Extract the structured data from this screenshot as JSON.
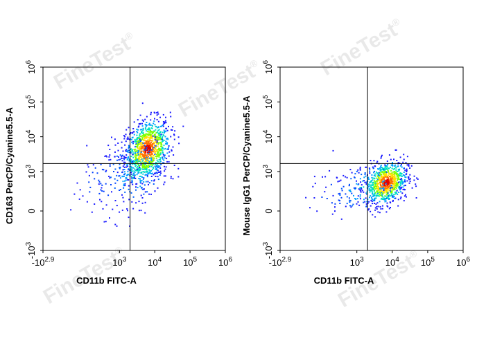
{
  "watermark": {
    "text": "FineTest",
    "mark": "®"
  },
  "chart_data": [
    {
      "type": "scatter",
      "subtype": "flow-cytometry-density-dot-plot",
      "xlabel": "CD11b FITC-A",
      "ylabel": "CD163 PerCP/Cyanine5.5-A",
      "x_scale": "biexponential",
      "y_scale": "biexponential",
      "x_ticks": [
        {
          "value": -794,
          "base": "-10",
          "exp": "2.9"
        },
        {
          "value": 1000,
          "base": "10",
          "exp": "3"
        },
        {
          "value": 10000,
          "base": "10",
          "exp": "4"
        },
        {
          "value": 100000,
          "base": "10",
          "exp": "5"
        },
        {
          "value": 1000000,
          "base": "10",
          "exp": "6"
        }
      ],
      "y_ticks": [
        {
          "value": -1000,
          "base": "-10",
          "exp": "3"
        },
        {
          "value": 0,
          "base": "0",
          "exp": ""
        },
        {
          "value": 1000,
          "base": "10",
          "exp": "3"
        },
        {
          "value": 10000,
          "base": "10",
          "exp": "4"
        },
        {
          "value": 100000,
          "base": "10",
          "exp": "5"
        },
        {
          "value": 1000000,
          "base": "10",
          "exp": "6"
        }
      ],
      "gate": {
        "x": 2000,
        "y": 1700
      },
      "populations": [
        {
          "center": [
            6000,
            4500
          ],
          "spread": [
            0.32,
            0.42
          ],
          "count": 900,
          "density": "high"
        },
        {
          "center": [
            3000,
            1200
          ],
          "spread": [
            0.45,
            0.5
          ],
          "count": 260,
          "density": "medium"
        },
        {
          "center": [
            400,
            600
          ],
          "spread": [
            0.5,
            0.5
          ],
          "count": 70,
          "density": "low"
        }
      ]
    },
    {
      "type": "scatter",
      "subtype": "flow-cytometry-density-dot-plot",
      "xlabel": "CD11b FITC-A",
      "ylabel": "Mouse IgG1 PerCP/Cyanine5.5-A",
      "x_scale": "biexponential",
      "y_scale": "biexponential",
      "x_ticks": [
        {
          "value": -794,
          "base": "-10",
          "exp": "2.9"
        },
        {
          "value": 1000,
          "base": "10",
          "exp": "3"
        },
        {
          "value": 10000,
          "base": "10",
          "exp": "4"
        },
        {
          "value": 100000,
          "base": "10",
          "exp": "5"
        },
        {
          "value": 1000000,
          "base": "10",
          "exp": "6"
        }
      ],
      "y_ticks": [
        {
          "value": -1000,
          "base": "-10",
          "exp": "3"
        },
        {
          "value": 0,
          "base": "0",
          "exp": ""
        },
        {
          "value": 1000,
          "base": "10",
          "exp": "3"
        },
        {
          "value": 10000,
          "base": "10",
          "exp": "4"
        },
        {
          "value": 100000,
          "base": "10",
          "exp": "5"
        },
        {
          "value": 1000000,
          "base": "10",
          "exp": "6"
        }
      ],
      "gate": {
        "x": 2000,
        "y": 1700
      },
      "populations": [
        {
          "center": [
            6500,
            500
          ],
          "spread": [
            0.3,
            0.3
          ],
          "count": 750,
          "density": "high"
        },
        {
          "center": [
            2000,
            350
          ],
          "spread": [
            0.5,
            0.35
          ],
          "count": 140,
          "density": "medium"
        },
        {
          "center": [
            300,
            250
          ],
          "spread": [
            0.45,
            0.3
          ],
          "count": 40,
          "density": "low"
        }
      ]
    }
  ]
}
